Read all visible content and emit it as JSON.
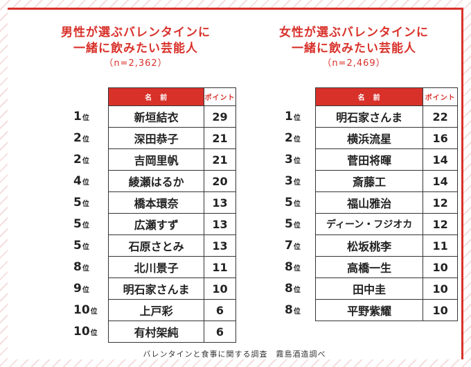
{
  "male": {
    "title_line1": "男性が選ぶバレンタインに",
    "title_line2": "一緒に飲みたい芸能人",
    "count": "（n=2,362）",
    "header_name": "名　前",
    "header_points": "ポイント",
    "rows": [
      {
        "rank": "1",
        "name": "新垣結衣",
        "points": "29"
      },
      {
        "rank": "2",
        "name": "深田恭子",
        "points": "21"
      },
      {
        "rank": "2",
        "name": "吉岡里帆",
        "points": "21"
      },
      {
        "rank": "4",
        "name": "綾瀬はるか",
        "points": "20"
      },
      {
        "rank": "5",
        "name": "橋本環奈",
        "points": "13"
      },
      {
        "rank": "5",
        "name": "広瀬すず",
        "points": "13"
      },
      {
        "rank": "5",
        "name": "石原さとみ",
        "points": "13"
      },
      {
        "rank": "8",
        "name": "北川景子",
        "points": "11"
      },
      {
        "rank": "9",
        "name": "明石家さんま",
        "points": "10"
      },
      {
        "rank": "10",
        "name": "上戸彩",
        "points": "6"
      },
      {
        "rank": "10",
        "name": "有村架純",
        "points": "6"
      }
    ]
  },
  "female": {
    "title_line1": "女性が選ぶバレンタインに",
    "title_line2": "一緒に飲みたい芸能人",
    "count": "（n=2,469）",
    "header_name": "名　前",
    "header_points": "ポイント",
    "rows": [
      {
        "rank": "1",
        "name": "明石家さんま",
        "points": "22"
      },
      {
        "rank": "2",
        "name": "横浜流星",
        "points": "16"
      },
      {
        "rank": "3",
        "name": "菅田将暉",
        "points": "14"
      },
      {
        "rank": "3",
        "name": "斎藤工",
        "points": "14"
      },
      {
        "rank": "5",
        "name": "福山雅治",
        "points": "12"
      },
      {
        "rank": "5",
        "name": "ディーン・フジオカ",
        "points": "12"
      },
      {
        "rank": "7",
        "name": "松坂桃李",
        "points": "11"
      },
      {
        "rank": "8",
        "name": "高橋一生",
        "points": "10"
      },
      {
        "rank": "8",
        "name": "田中圭",
        "points": "10"
      },
      {
        "rank": "8",
        "name": "平野紫耀",
        "points": "10"
      }
    ]
  },
  "rank_suffix": "位",
  "footer": "バレンタインと食事に関する調査　霧島酒造調べ",
  "colors": {
    "accent": "#d8312a",
    "stripe": "#f5dede"
  }
}
